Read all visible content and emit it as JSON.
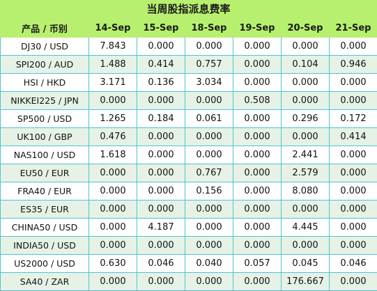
{
  "title": "当周股指派息费率",
  "columns": [
    "产品 / 币别",
    "14-Sep",
    "15-Sep",
    "18-Sep",
    "19-Sep",
    "20-Sep",
    "21-Sep"
  ],
  "rows": [
    {
      "product": "DJ30 / USD",
      "values": [
        "7.843",
        "0.000",
        "0.000",
        "0.000",
        "0.000",
        "0.000"
      ]
    },
    {
      "product": "SPI200 / AUD",
      "values": [
        "1.488",
        "0.414",
        "0.757",
        "0.000",
        "0.104",
        "0.946"
      ]
    },
    {
      "product": "HSI / HKD",
      "values": [
        "3.171",
        "0.136",
        "3.034",
        "0.000",
        "0.000",
        "0.000"
      ]
    },
    {
      "product": "NIKKEI225 / JPN",
      "values": [
        "0.000",
        "0.000",
        "0.000",
        "0.508",
        "0.000",
        "0.000"
      ]
    },
    {
      "product": "SP500 / USD",
      "values": [
        "1.265",
        "0.184",
        "0.061",
        "0.000",
        "0.296",
        "0.172"
      ]
    },
    {
      "product": "UK100 / GBP",
      "values": [
        "0.476",
        "0.000",
        "0.000",
        "0.000",
        "0.000",
        "0.414"
      ]
    },
    {
      "product": "NAS100 / USD",
      "values": [
        "1.618",
        "0.000",
        "0.000",
        "0.000",
        "2.441",
        "0.000"
      ]
    },
    {
      "product": "EU50 / EUR",
      "values": [
        "0.000",
        "0.000",
        "0.767",
        "0.000",
        "2.579",
        "0.000"
      ]
    },
    {
      "product": "FRA40 / EUR",
      "values": [
        "0.000",
        "0.000",
        "0.156",
        "0.000",
        "8.080",
        "0.000"
      ]
    },
    {
      "product": "ES35 / EUR",
      "values": [
        "0.000",
        "0.000",
        "0.000",
        "0.000",
        "0.000",
        "0.000"
      ]
    },
    {
      "product": "CHINA50 / USD",
      "values": [
        "0.000",
        "4.187",
        "0.000",
        "0.000",
        "4.445",
        "0.000"
      ]
    },
    {
      "product": "INDIA50 / USD",
      "values": [
        "0.000",
        "0.000",
        "0.000",
        "0.000",
        "0.000",
        "0.000"
      ]
    },
    {
      "product": "US2000 / USD",
      "values": [
        "0.630",
        "0.046",
        "0.040",
        "0.057",
        "0.045",
        "0.046"
      ]
    },
    {
      "product": "SA40 / ZAR",
      "values": [
        "0.000",
        "0.000",
        "0.000",
        "0.000",
        "176.667",
        "0.000"
      ]
    }
  ],
  "colors": {
    "header_bg": "#b7f06e",
    "row_alt_bg": "#e6f2e6",
    "grid_line": "#4fc3d6"
  }
}
